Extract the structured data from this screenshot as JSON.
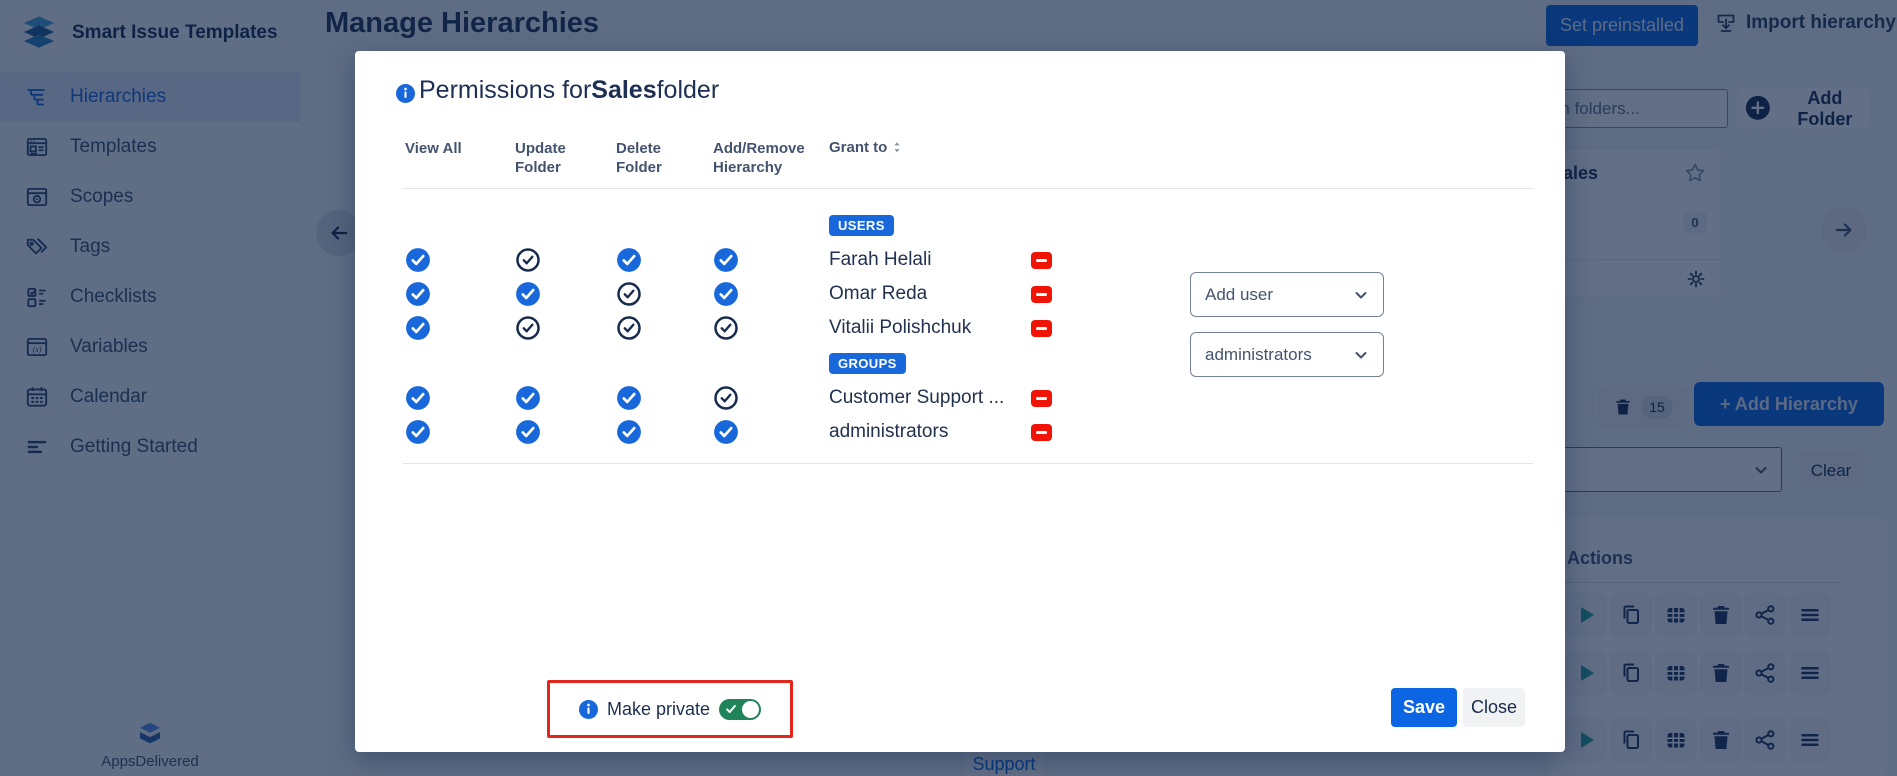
{
  "app": {
    "brand": "Smart Issue Templates",
    "footer_brand": "AppsDelivered"
  },
  "sidebar": {
    "items": [
      {
        "id": "hierarchies",
        "label": "Hierarchies",
        "icon": "hierarchy",
        "active": true
      },
      {
        "id": "templates",
        "label": "Templates",
        "icon": "templates",
        "active": false
      },
      {
        "id": "scopes",
        "label": "Scopes",
        "icon": "scopes",
        "active": false
      },
      {
        "id": "tags",
        "label": "Tags",
        "icon": "tags",
        "active": false
      },
      {
        "id": "checklists",
        "label": "Checklists",
        "icon": "checklists",
        "active": false
      },
      {
        "id": "variables",
        "label": "Variables",
        "icon": "variables",
        "active": false
      },
      {
        "id": "calendar",
        "label": "Calendar",
        "icon": "calendar",
        "active": false
      },
      {
        "id": "getting-started",
        "label": "Getting Started",
        "icon": "getting-started",
        "active": false
      }
    ]
  },
  "header": {
    "title": "Manage Hierarchies",
    "set_preinstalled_label": "Set preinstalled",
    "import_hierarchy_label": "Import hierarchy"
  },
  "content": {
    "search_placeholder": "Search folders...",
    "add_folder_label": "Add Folder",
    "folder_card": {
      "title": "Sales",
      "count": "0"
    },
    "trash_count": "15",
    "add_hierarchy_label": "+ Add Hierarchy",
    "clear_label": "Clear",
    "actions_header": "Actions",
    "action_icons": [
      "run",
      "duplicate",
      "table",
      "delete",
      "share",
      "menu"
    ],
    "action_rows": 3,
    "support_label": "Support"
  },
  "modal": {
    "title_prefix": "Permissions for",
    "title_folder": "Sales",
    "title_suffix": "folder",
    "columns": [
      "View All",
      "Update Folder",
      "Delete Folder",
      "Add/Remove Hierarchy"
    ],
    "grant_to_label": "Grant to",
    "sections": [
      {
        "badge": "USERS",
        "rows": [
          {
            "name": "Farah Helali",
            "perms": [
              true,
              false,
              true,
              true
            ]
          },
          {
            "name": "Omar Reda",
            "perms": [
              true,
              true,
              false,
              true
            ]
          },
          {
            "name": "Vitalii Polishchuk",
            "perms": [
              true,
              false,
              false,
              false
            ]
          }
        ]
      },
      {
        "badge": "GROUPS",
        "rows": [
          {
            "name": "Customer Support ...",
            "perms": [
              true,
              true,
              true,
              false
            ]
          },
          {
            "name": "administrators",
            "perms": [
              true,
              true,
              true,
              true
            ]
          }
        ]
      }
    ],
    "add_user_value": "Add user",
    "group_value": "administrators",
    "make_private_label": "Make private",
    "make_private_on": true,
    "save_label": "Save",
    "close_label": "Close"
  },
  "colors": {
    "accent_blue": "#0C66E4",
    "checkbox_blue": "#1868DB",
    "badge_blue": "#1868DB",
    "remove_red": "#F01407",
    "highlight_red": "#E2261C",
    "toggle_green": "#1F845A",
    "run_teal": "#27A296",
    "navy_text": "#172B4D"
  }
}
